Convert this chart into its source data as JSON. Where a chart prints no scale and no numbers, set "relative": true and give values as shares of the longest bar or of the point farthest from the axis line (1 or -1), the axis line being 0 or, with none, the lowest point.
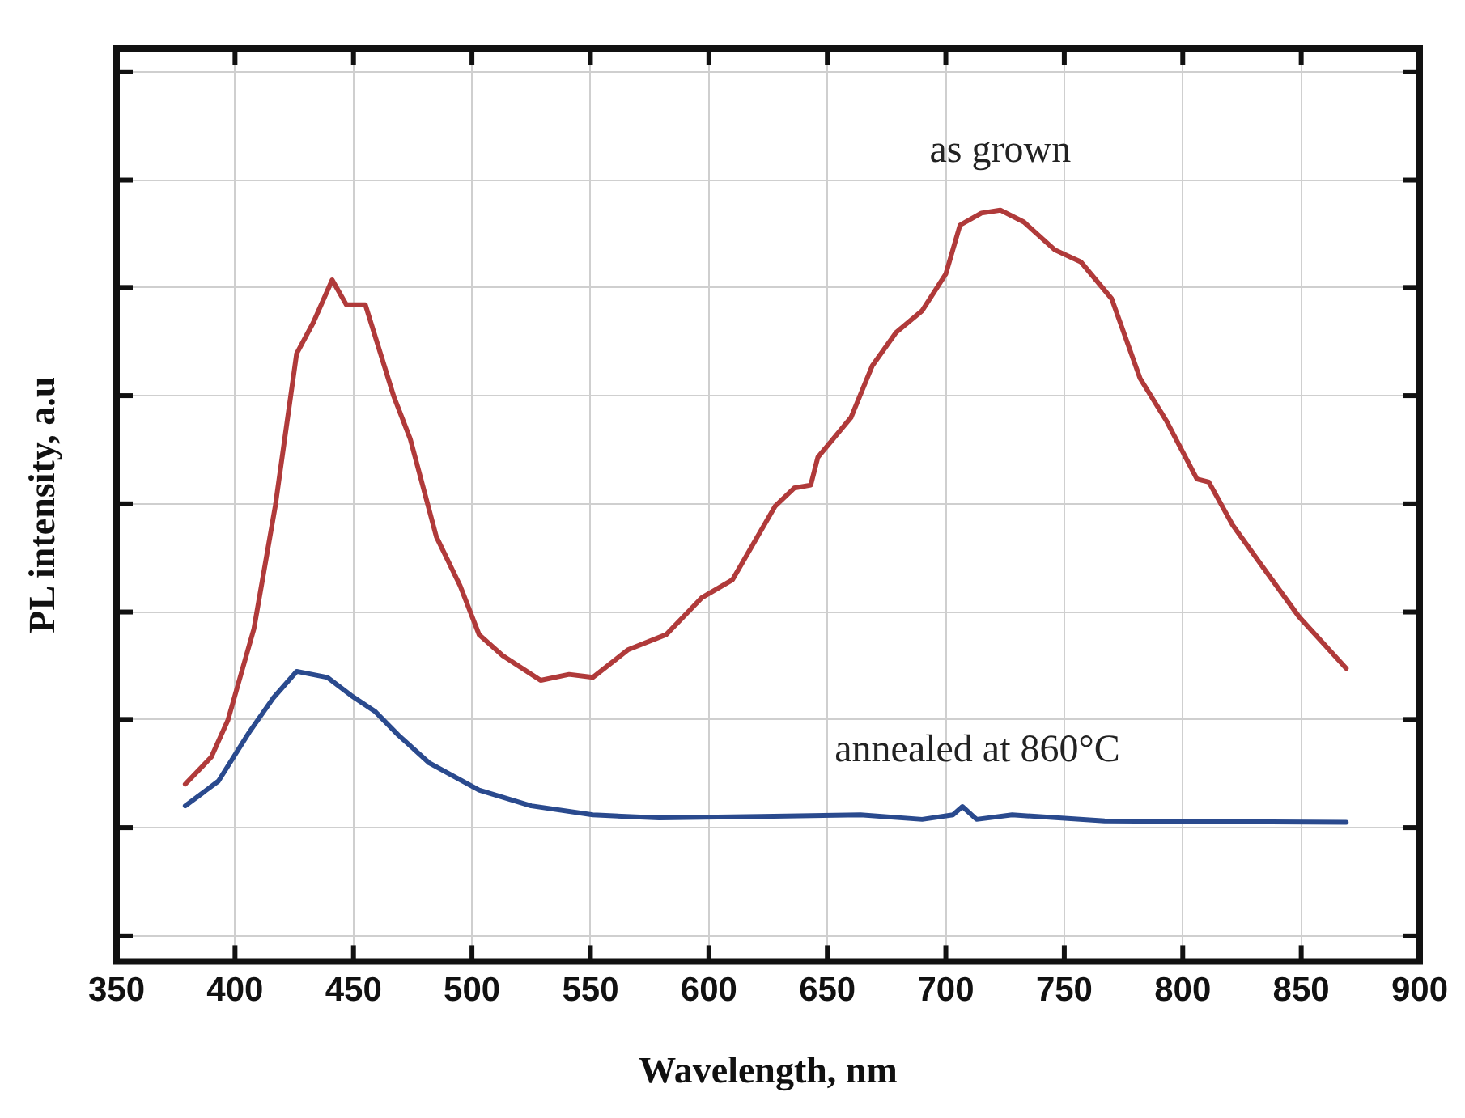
{
  "chart_data": {
    "type": "line",
    "xlabel": "Wavelength, nm",
    "ylabel": "PL intensity, a.u",
    "relative": true,
    "grid": true,
    "legend": false,
    "marker": "none",
    "line_style": "solid",
    "xlim": [
      350,
      900
    ],
    "xticks": [
      350,
      400,
      450,
      500,
      550,
      600,
      650,
      700,
      750,
      800,
      850,
      900
    ],
    "series": [
      {
        "name": "as grown",
        "color": "#b03a3a",
        "x": [
          379,
          390,
          397,
          408,
          417,
          426,
          433,
          441,
          447,
          455,
          467,
          474,
          485,
          495,
          503,
          513,
          529,
          541,
          551,
          566,
          582,
          597,
          610,
          628,
          636,
          643,
          646,
          660,
          669,
          679,
          690,
          700,
          706,
          715,
          723,
          733,
          746,
          757,
          770,
          782,
          793,
          806,
          811,
          821,
          834,
          849,
          869
        ],
        "values": [
          0.236,
          0.272,
          0.321,
          0.443,
          0.606,
          0.809,
          0.85,
          0.907,
          0.874,
          0.874,
          0.752,
          0.695,
          0.565,
          0.5,
          0.435,
          0.407,
          0.374,
          0.382,
          0.378,
          0.415,
          0.435,
          0.484,
          0.508,
          0.606,
          0.63,
          0.634,
          0.671,
          0.724,
          0.793,
          0.837,
          0.866,
          0.915,
          0.98,
          0.996,
          1,
          0.984,
          0.947,
          0.931,
          0.882,
          0.776,
          0.72,
          0.642,
          0.638,
          0.581,
          0.524,
          0.459,
          0.39
        ]
      },
      {
        "name": "annealed at 860°C",
        "color": "#2a4a8e",
        "x": [
          379,
          393,
          406,
          416,
          426,
          439,
          449,
          459,
          469,
          482,
          503,
          525,
          551,
          579,
          622,
          664,
          690,
          703,
          707,
          713,
          728,
          767,
          869
        ],
        "values": [
          0.207,
          0.24,
          0.305,
          0.35,
          0.386,
          0.378,
          0.354,
          0.333,
          0.301,
          0.264,
          0.228,
          0.207,
          0.195,
          0.191,
          0.193,
          0.195,
          0.189,
          0.195,
          0.206,
          0.189,
          0.195,
          0.187,
          0.185
        ]
      }
    ]
  }
}
